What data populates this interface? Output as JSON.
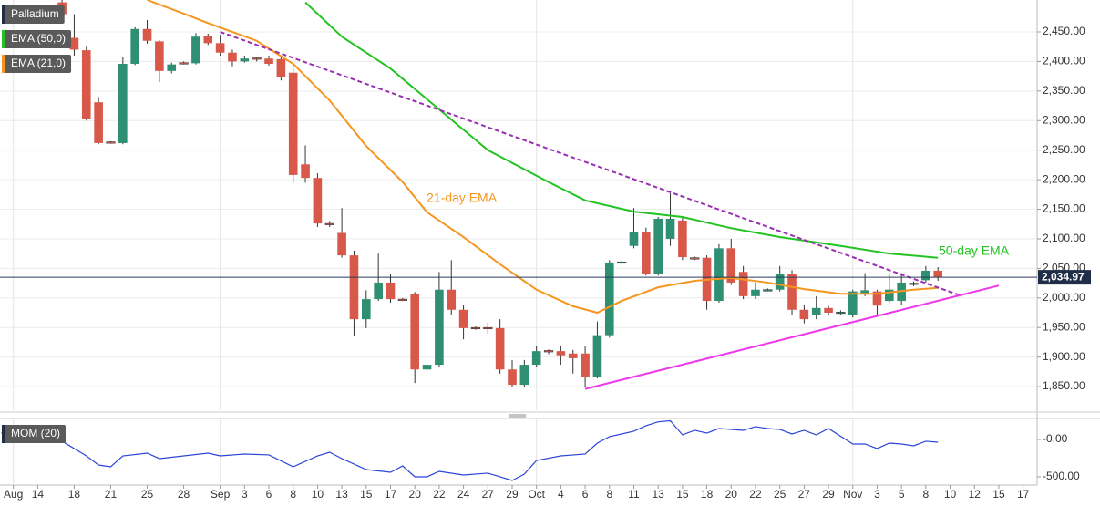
{
  "chart_data": [
    {
      "type": "candlestick",
      "name": "Palladium",
      "up_color": "#2e8f73",
      "down_color": "#d8594a",
      "xlim": [
        -5.1,
        80.15
      ],
      "ylim": [
        1810,
        2504
      ],
      "grid": true,
      "yticks": [
        {
          "value": 1850,
          "label": "1,850.00"
        },
        {
          "value": 1900,
          "label": "1,900.00"
        },
        {
          "value": 1950,
          "label": "1,950.00"
        },
        {
          "value": 2000,
          "label": "2,000.00"
        },
        {
          "value": 2050,
          "label": "2,050.00"
        },
        {
          "value": 2100,
          "label": "2,100.00"
        },
        {
          "value": 2150,
          "label": "2,150.00"
        },
        {
          "value": 2200,
          "label": "2,200.00"
        },
        {
          "value": 2250,
          "label": "2,250.00"
        },
        {
          "value": 2300,
          "label": "2,300.00"
        },
        {
          "value": 2350,
          "label": "2,350.00"
        },
        {
          "value": 2400,
          "label": "2,400.00"
        },
        {
          "value": 2450,
          "label": "2,450.00"
        }
      ],
      "xticks": [
        {
          "value": -4,
          "label": "Aug"
        },
        {
          "value": -2,
          "label": "14"
        },
        {
          "value": 1,
          "label": "18"
        },
        {
          "value": 4,
          "label": "21"
        },
        {
          "value": 7,
          "label": "25"
        },
        {
          "value": 10,
          "label": "28"
        },
        {
          "value": 13,
          "label": "Sep"
        },
        {
          "value": 15,
          "label": "3"
        },
        {
          "value": 17,
          "label": "6"
        },
        {
          "value": 19,
          "label": "8"
        },
        {
          "value": 21,
          "label": "10"
        },
        {
          "value": 23,
          "label": "13"
        },
        {
          "value": 25,
          "label": "15"
        },
        {
          "value": 27,
          "label": "17"
        },
        {
          "value": 29,
          "label": "20"
        },
        {
          "value": 31,
          "label": "22"
        },
        {
          "value": 33,
          "label": "24"
        },
        {
          "value": 35,
          "label": "27"
        },
        {
          "value": 37,
          "label": "29"
        },
        {
          "value": 39,
          "label": "Oct"
        },
        {
          "value": 41,
          "label": "4"
        },
        {
          "value": 43,
          "label": "6"
        },
        {
          "value": 45,
          "label": "8"
        },
        {
          "value": 47,
          "label": "11"
        },
        {
          "value": 49,
          "label": "13"
        },
        {
          "value": 51,
          "label": "15"
        },
        {
          "value": 53,
          "label": "18"
        },
        {
          "value": 55,
          "label": "20"
        },
        {
          "value": 57,
          "label": "22"
        },
        {
          "value": 59,
          "label": "25"
        },
        {
          "value": 61,
          "label": "27"
        },
        {
          "value": 63,
          "label": "29"
        },
        {
          "value": 65,
          "label": "Nov"
        },
        {
          "value": 67,
          "label": "3"
        },
        {
          "value": 69,
          "label": "5"
        },
        {
          "value": 71,
          "label": "8"
        },
        {
          "value": 73,
          "label": "10"
        },
        {
          "value": 75,
          "label": "12"
        },
        {
          "value": 77,
          "label": "15"
        },
        {
          "value": 79,
          "label": "17"
        }
      ],
      "x": [
        0,
        1,
        2,
        3,
        4,
        5,
        6,
        7,
        8,
        9,
        10,
        11,
        12,
        13,
        14,
        15,
        16,
        17,
        18,
        19,
        20,
        21,
        22,
        23,
        24,
        25,
        26,
        27,
        28,
        29,
        30,
        31,
        32,
        33,
        34,
        35,
        36,
        37,
        38,
        39,
        40,
        41,
        42,
        43,
        44,
        45,
        46,
        47,
        48,
        49,
        50,
        51,
        52,
        53,
        54,
        55,
        56,
        57,
        58,
        59,
        60,
        61,
        62,
        63,
        64,
        65,
        66,
        67,
        68,
        69,
        70,
        71,
        72
      ],
      "open": [
        2500,
        2440,
        2419,
        2331,
        2264,
        2262,
        2396,
        2455,
        2434,
        2384,
        2398,
        2397,
        2443,
        2431,
        2415,
        2400,
        2406,
        2405,
        2404,
        2381,
        2226,
        2203,
        2126,
        2110,
        2072,
        1964,
        1998,
        2026,
        1998,
        2007,
        1879,
        1887,
        2014,
        1980,
        1950,
        1950,
        1949,
        1879,
        1853,
        1887,
        1911,
        1910,
        1906,
        1906,
        1867,
        1937,
        2060,
        2088,
        2111,
        2041,
        2100,
        2131,
        2068,
        2068,
        1995,
        2084,
        2044,
        2003,
        2013,
        2014,
        2041,
        1980,
        1972,
        1983,
        1975,
        1972,
        2008,
        2011,
        1995,
        1995,
        2024,
        2030,
        2046
      ],
      "high": [
        2504,
        2480,
        2425,
        2340,
        2265,
        2408,
        2458,
        2470,
        2436,
        2398,
        2400,
        2448,
        2447,
        2445,
        2420,
        2410,
        2408,
        2410,
        2407,
        2388,
        2258,
        2211,
        2130,
        2152,
        2080,
        2013,
        2075,
        2041,
        2000,
        2010,
        1895,
        2044,
        2064,
        1988,
        1952,
        1958,
        1964,
        1895,
        1895,
        1918,
        1913,
        1918,
        1912,
        1918,
        1960,
        2064,
        2062,
        2152,
        2119,
        2137,
        2177,
        2137,
        2070,
        2072,
        2091,
        2100,
        2054,
        2026,
        2016,
        2054,
        2047,
        1988,
        2003,
        1987,
        1979,
        2014,
        2042,
        2014,
        2042,
        2042,
        2028,
        2054,
        2052
      ],
      "low": [
        2470,
        2410,
        2300,
        2260,
        2261,
        2260,
        2394,
        2430,
        2365,
        2380,
        2395,
        2395,
        2428,
        2410,
        2392,
        2398,
        2400,
        2393,
        2368,
        2195,
        2195,
        2120,
        2120,
        2068,
        1936,
        1949,
        1995,
        1992,
        1995,
        1856,
        1875,
        1884,
        1972,
        1930,
        1946,
        1940,
        1872,
        1849,
        1849,
        1884,
        1905,
        1887,
        1872,
        1849,
        1864,
        1933,
        2058,
        2084,
        2038,
        2038,
        2088,
        2064,
        2064,
        1980,
        1992,
        2022,
        1998,
        1998,
        2011,
        2011,
        1972,
        1957,
        1964,
        1970,
        1972,
        1967,
        2003,
        1972,
        1992,
        1988,
        2020,
        2026,
        2029
      ],
      "close": [
        2480,
        2420,
        2303,
        2262,
        2262,
        2396,
        2455,
        2435,
        2384,
        2395,
        2397,
        2442,
        2431,
        2415,
        2400,
        2405,
        2404,
        2396,
        2373,
        2208,
        2203,
        2126,
        2124,
        2072,
        1964,
        1998,
        2026,
        1998,
        1997,
        1879,
        1887,
        2014,
        1980,
        1949,
        1949,
        1948,
        1879,
        1853,
        1887,
        1910,
        1910,
        1903,
        1898,
        1867,
        1937,
        2060,
        2061,
        2111,
        2041,
        2134,
        2134,
        2069,
        2066,
        1995,
        2084,
        2026,
        2003,
        2014,
        2014,
        2041,
        1980,
        1964,
        1983,
        1975,
        1976,
        2011,
        2013,
        1987,
        2014,
        2026,
        2025,
        2046,
        2034.97
      ],
      "series": [
        {
          "name": "EMA (50,0)",
          "color": "#22c322",
          "x": [
            20,
            23,
            27,
            31,
            35,
            40,
            43,
            47,
            51,
            55,
            59,
            64,
            68,
            72
          ],
          "values": [
            2500,
            2442,
            2388,
            2319,
            2250,
            2196,
            2165,
            2146,
            2137,
            2118,
            2103,
            2088,
            2075,
            2068
          ]
        },
        {
          "name": "EMA (21,0)",
          "color": "#f5961e",
          "x": [
            7,
            10,
            12,
            16,
            19,
            22,
            25,
            28,
            30,
            33,
            36,
            39,
            42,
            44,
            46,
            49,
            52,
            55,
            58,
            61,
            64,
            67,
            70,
            72
          ],
          "values": [
            2504,
            2481,
            2465,
            2435,
            2396,
            2334,
            2257,
            2196,
            2145,
            2103,
            2057,
            2014,
            1986,
            1975,
            1995,
            2018,
            2029,
            2034,
            2026,
            2015,
            2007,
            2007,
            2014,
            2017
          ]
        }
      ],
      "trendlines": [
        {
          "color": "#9a2eb3",
          "dash": true,
          "x": [
            13,
            74
          ],
          "values": [
            2450,
            2003
          ]
        },
        {
          "color": "#ee38ee",
          "dash": false,
          "x": [
            43,
            77
          ],
          "values": [
            1846,
            2021
          ]
        }
      ],
      "annotations": [
        {
          "text": "21-day EMA",
          "color": "#f5961e"
        },
        {
          "text": "50-day EMA",
          "color": "#22c322"
        }
      ],
      "last_price": {
        "value": 2034.97,
        "label": "2,034.97"
      }
    },
    {
      "type": "line",
      "xlim": [
        -5.1,
        80.15
      ],
      "ylim": [
        -610,
        268
      ],
      "yticks": [
        {
          "value": 0,
          "label": "-0.00"
        },
        {
          "value": -500,
          "label": "-500.00"
        }
      ],
      "series": [
        {
          "name": "MOM (20)",
          "color": "#2b45d8",
          "x": [
            -5,
            -3,
            -1,
            0,
            2,
            3,
            4,
            5,
            7,
            8,
            10,
            12,
            13,
            15,
            17,
            19,
            21,
            22,
            23,
            25,
            27,
            28,
            29,
            30,
            31,
            33,
            35,
            37,
            38,
            39,
            41,
            43,
            44,
            45,
            46,
            47,
            48,
            49,
            50,
            51,
            52,
            53,
            54,
            55,
            56,
            57,
            58,
            59,
            60,
            61,
            62,
            63,
            65,
            66,
            67,
            68,
            69,
            70,
            71,
            72
          ],
          "values": [
            85,
            122,
            73,
            -24,
            -220,
            -342,
            -366,
            -220,
            -183,
            -256,
            -220,
            -183,
            -220,
            -195,
            -207,
            -366,
            -220,
            -171,
            -256,
            -403,
            -439,
            -354,
            -500,
            -500,
            -427,
            -476,
            -451,
            -549,
            -464,
            -281,
            -220,
            -195,
            -49,
            37,
            73,
            110,
            183,
            235,
            250,
            61,
            122,
            85,
            146,
            134,
            122,
            171,
            146,
            134,
            73,
            122,
            61,
            146,
            -61,
            -61,
            -122,
            -49,
            -61,
            -85,
            -24,
            -37
          ]
        }
      ]
    }
  ]
}
